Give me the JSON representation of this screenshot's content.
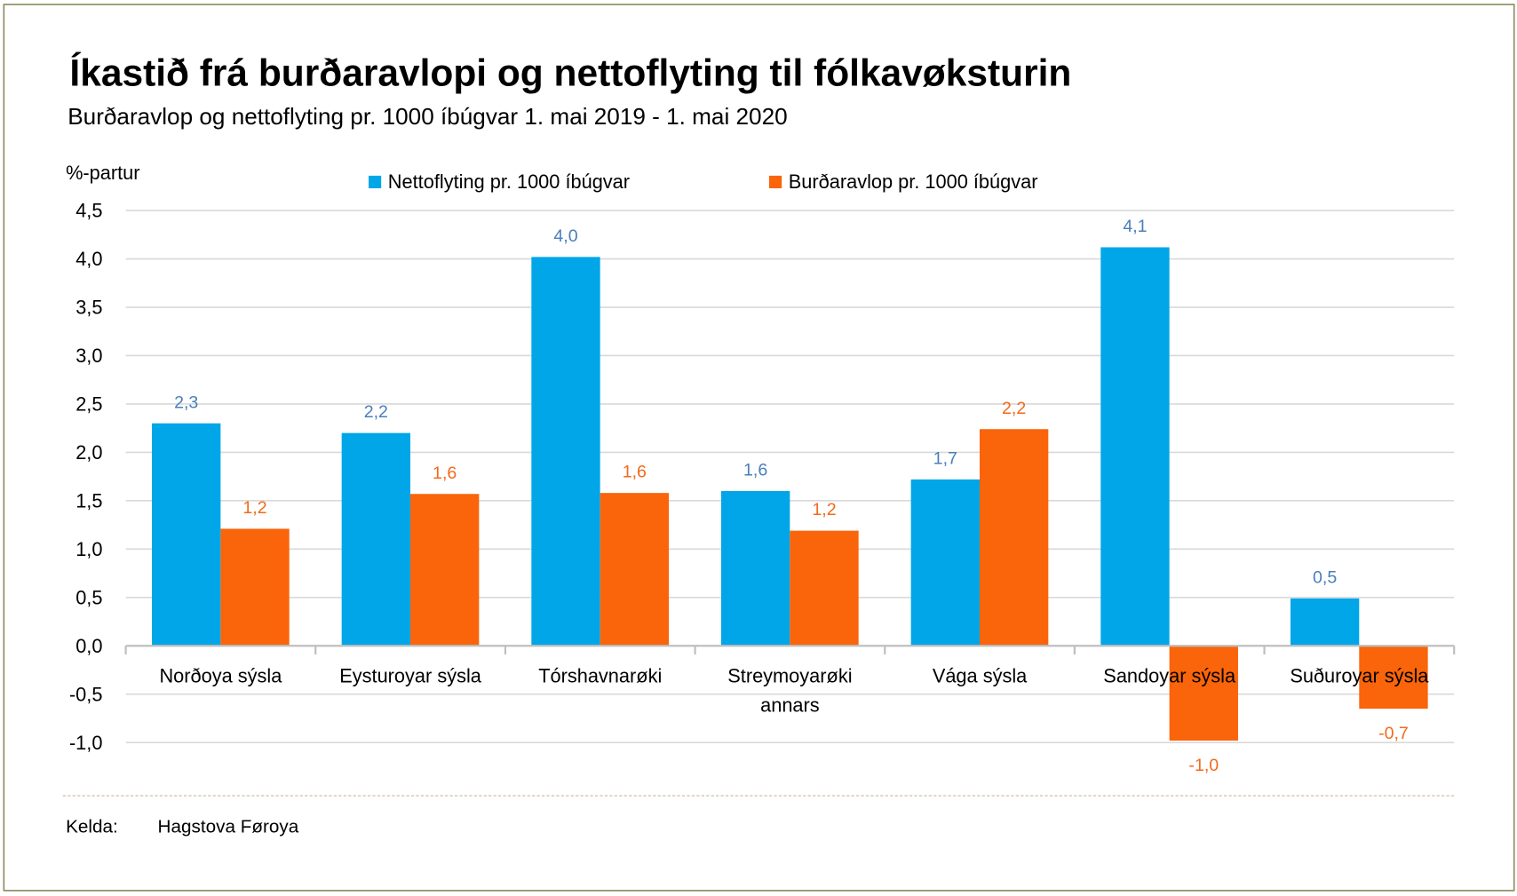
{
  "title": "Íkastið frá burðaravlopi og nettoflyting til fólkavøksturin",
  "subtitle": "Burðaravlop og nettoflyting pr. 1000 íbúgvar 1. mai 2019 - 1. mai 2020",
  "source": {
    "label": "Kelda:",
    "value": "Hagstova Føroya"
  },
  "chart_data": {
    "type": "bar",
    "ylabel": "%-partur",
    "ylim": [
      -1.0,
      4.5
    ],
    "yticks": [
      4.5,
      4.0,
      3.5,
      3.0,
      2.5,
      2.0,
      1.5,
      1.0,
      0.5,
      0.0,
      -0.5,
      -1.0
    ],
    "ytick_labels": [
      "4,5",
      "4,0",
      "3,5",
      "3,0",
      "2,5",
      "2,0",
      "1,5",
      "1,0",
      "0,5",
      "0,0",
      "-0,5",
      "-1,0"
    ],
    "grid": true,
    "legend_position": "top",
    "categories": [
      [
        "Norðoya sýsla"
      ],
      [
        "Eysturoyar sýsla"
      ],
      [
        "Tórshavnarøki"
      ],
      [
        "Streymoyarøki",
        "annars"
      ],
      [
        "Vága sýsla"
      ],
      [
        "Sandoyar sýsla"
      ],
      [
        "Suðuroyar sýsla"
      ]
    ],
    "series": [
      {
        "name": "Nettoflyting pr. 1000 íbúgvar",
        "color": "#00a6e8",
        "label_color": "#4a7ebb",
        "values": [
          2.3,
          2.2,
          4.02,
          1.6,
          1.72,
          4.12,
          0.49
        ],
        "labels": [
          "2,3",
          "2,2",
          "4,0",
          "1,6",
          "1,7",
          "4,1",
          "0,5"
        ]
      },
      {
        "name": "Burðaravlop pr. 1000 íbúgvar",
        "color": "#fa640a",
        "label_color": "#f26a1b",
        "values": [
          1.21,
          1.57,
          1.58,
          1.19,
          2.24,
          -0.98,
          -0.65
        ],
        "labels": [
          "1,2",
          "1,6",
          "1,6",
          "1,2",
          "2,2",
          "-1,0",
          "-0,7"
        ]
      }
    ]
  }
}
